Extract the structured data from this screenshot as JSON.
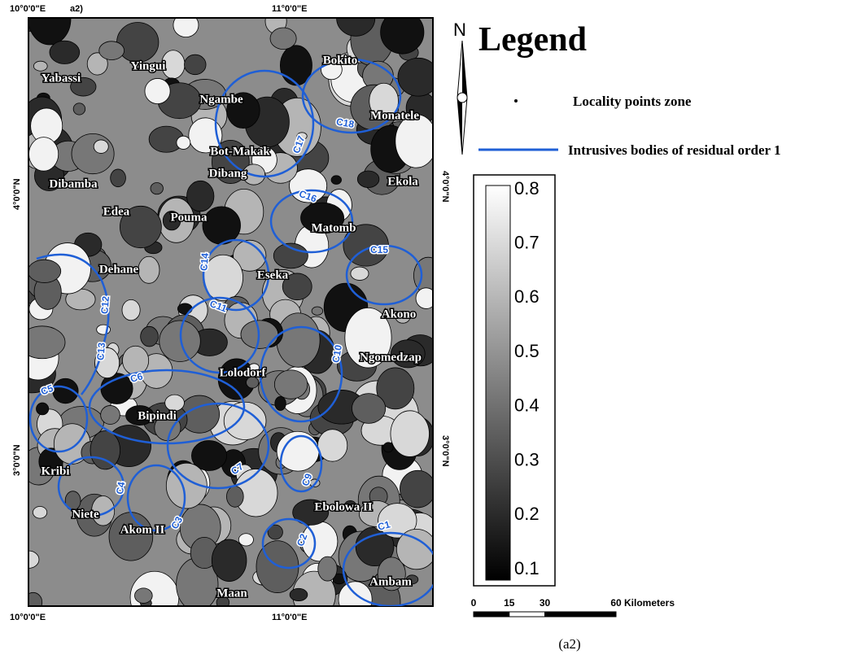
{
  "coordinates": {
    "top": [
      "10°0'0\"E",
      "11°0'0\"E"
    ],
    "panel": "a2)",
    "bottom": [
      "10°0'0\"E",
      "11°0'0\"E"
    ],
    "left": [
      "4°0'0\"N",
      "3°0'0\"N"
    ],
    "right": [
      "4°0'0\"N",
      "3°0'0\"N"
    ]
  },
  "localities": [
    "Yabassi",
    "Yingui",
    "Bokito",
    "Ngambe",
    "Monatele",
    "Bot-Makak",
    "Dibang",
    "Ekola",
    "Dibamba",
    "Edea",
    "Pouma",
    "Matomb",
    "Dehane",
    "Eseka",
    "Akono",
    "Ngomedzap",
    "Lolodorf",
    "Bipindi",
    "Kribi",
    "Niete",
    "Akom II",
    "Ebolowa II",
    "Ambam",
    "Maan"
  ],
  "bodies": [
    "C1",
    "C2",
    "C3",
    "C4",
    "C5",
    "C6",
    "C7",
    "C9",
    "C10",
    "C11",
    "C12",
    "C13",
    "C14",
    "C15",
    "C16",
    "C17",
    "C18"
  ],
  "legend": {
    "north": "N",
    "title": "Legend",
    "items": [
      "Locality points zone",
      "Intrusives bodies of residual order 1"
    ]
  },
  "colorbar": {
    "ticks": [
      0.8,
      0.7,
      0.6,
      0.5,
      0.4,
      0.3,
      0.2,
      0.1
    ]
  },
  "scale": {
    "ticks": [
      0,
      15,
      30,
      60
    ],
    "unit": "Kilometers"
  },
  "caption": "(a2)"
}
